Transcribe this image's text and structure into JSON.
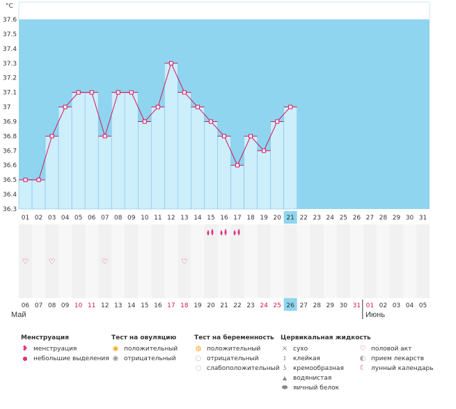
{
  "chart_data": {
    "type": "line",
    "unit_label": "°C",
    "y_ticks": [
      "37.6",
      "37.5",
      "37.4",
      "37.3",
      "37.2",
      "37.1",
      "37",
      "36.9",
      "36.8",
      "36.7",
      "36.6",
      "36.5",
      "36.4",
      "36.3"
    ],
    "ylim": [
      36.3,
      37.6
    ],
    "cycle_days": [
      "01",
      "02",
      "03",
      "04",
      "05",
      "06",
      "07",
      "08",
      "09",
      "10",
      "11",
      "12",
      "13",
      "14",
      "15",
      "16",
      "17",
      "18",
      "19",
      "20",
      "21",
      "22",
      "23",
      "24",
      "25",
      "26",
      "27",
      "28",
      "29",
      "30",
      "31"
    ],
    "temperatures": [
      36.5,
      36.5,
      36.8,
      37.0,
      37.1,
      37.1,
      36.8,
      37.1,
      37.1,
      36.9,
      37.0,
      37.3,
      37.1,
      37.0,
      36.9,
      36.8,
      36.6,
      36.8,
      36.7,
      36.9,
      37.0
    ],
    "current_day_index": 20,
    "dates": [
      "06",
      "07",
      "08",
      "09",
      "10",
      "11",
      "12",
      "13",
      "14",
      "15",
      "16",
      "17",
      "18",
      "19",
      "20",
      "21",
      "22",
      "23",
      "24",
      "25",
      "26",
      "27",
      "28",
      "29",
      "30",
      "31",
      "01",
      "02",
      "03",
      "04",
      "05"
    ],
    "weekend_date_indices": [
      4,
      5,
      11,
      12,
      18,
      19,
      25,
      26
    ],
    "current_date_index": 20,
    "menstruation_day_indices": [
      14,
      15,
      16
    ],
    "intercourse_day_indices": [
      0,
      2,
      6,
      12
    ],
    "months": {
      "first": "Май",
      "second": "Июнь"
    },
    "colors": {
      "sky": "#8fd5f0",
      "bar": "#cdeefb",
      "bar_border": "#7cc3e6",
      "line": "#d4145a",
      "highlight": "#8fd5f0"
    }
  },
  "legend": {
    "menstruation": {
      "title": "Менструация",
      "items": [
        "менструация",
        "небольшие выделения"
      ]
    },
    "ovulation_test": {
      "title": "Тест на овуляцию",
      "items": [
        "положительный",
        "отрицательный"
      ]
    },
    "pregnancy_test": {
      "title": "Тест на беременность",
      "items": [
        "положительный",
        "отрицательный",
        "слабоположительный"
      ]
    },
    "cervical_fluid": {
      "title": "Цервикальная жидкость",
      "items": [
        "сухо",
        "клейкая",
        "кремообразная",
        "водянистая",
        "яичный белок"
      ]
    },
    "other": {
      "items": [
        "половой акт",
        "прием лекарств",
        "лунный календарь"
      ]
    }
  }
}
